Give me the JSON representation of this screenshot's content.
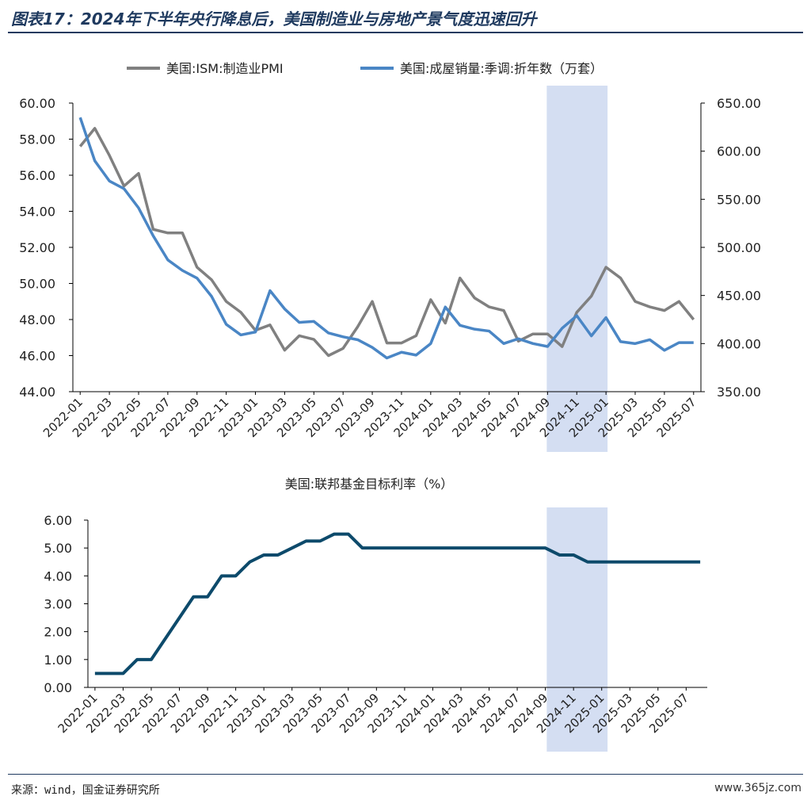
{
  "figure_title": "图表17：2024年下半年央行降息后，美国制造业与房地产景气度迅速回升",
  "source": "来源：wind，国金证券研究所",
  "watermark": "www.365jz.com",
  "highlight_range": [
    "2024-09",
    "2025-01"
  ],
  "colors": {
    "pmi": "#808080",
    "home_sales": "#4a86c5",
    "fed_rate": "#0d4a6b",
    "highlight": "#cdd8f0",
    "title": "#1f3a5f"
  },
  "chart_data": [
    {
      "type": "line",
      "legend_position": "top",
      "x": [
        "2022-01",
        "2022-02",
        "2022-03",
        "2022-04",
        "2022-05",
        "2022-06",
        "2022-07",
        "2022-08",
        "2022-09",
        "2022-10",
        "2022-11",
        "2022-12",
        "2023-01",
        "2023-02",
        "2023-03",
        "2023-04",
        "2023-05",
        "2023-06",
        "2023-07",
        "2023-08",
        "2023-09",
        "2023-10",
        "2023-11",
        "2023-12",
        "2024-01",
        "2024-02",
        "2024-03",
        "2024-04",
        "2024-05",
        "2024-06",
        "2024-07",
        "2024-08",
        "2024-09",
        "2024-10",
        "2024-11",
        "2024-12",
        "2025-01",
        "2025-02",
        "2025-03",
        "2025-04",
        "2025-05",
        "2025-06",
        "2025-07"
      ],
      "x_tick_labels": [
        "2022-01",
        "2022-03",
        "2022-05",
        "2022-07",
        "2022-09",
        "2022-11",
        "2023-01",
        "2023-03",
        "2023-05",
        "2023-07",
        "2023-09",
        "2023-11",
        "2024-01",
        "2024-03",
        "2024-05",
        "2024-07",
        "2024-09",
        "2024-11",
        "2025-01",
        "2025-03",
        "2025-05",
        "2025-07"
      ],
      "y_left": {
        "ylim": [
          44,
          60
        ],
        "ticks": [
          "44.00",
          "46.00",
          "48.00",
          "50.00",
          "52.00",
          "54.00",
          "56.00",
          "58.00",
          "60.00"
        ]
      },
      "y_right": {
        "ylim": [
          350,
          650
        ],
        "ticks": [
          "350.00",
          "400.00",
          "450.00",
          "500.00",
          "550.00",
          "600.00",
          "650.00"
        ]
      },
      "series": [
        {
          "name": "美国:ISM:制造业PMI",
          "axis": "left",
          "values": [
            57.6,
            58.6,
            57.1,
            55.4,
            56.1,
            53.0,
            52.8,
            52.8,
            50.9,
            50.2,
            49.0,
            48.4,
            47.4,
            47.7,
            46.3,
            47.1,
            46.9,
            46.0,
            46.4,
            47.6,
            49.0,
            46.7,
            46.7,
            47.1,
            49.1,
            47.8,
            50.3,
            49.2,
            48.7,
            48.5,
            46.8,
            47.2,
            47.2,
            46.5,
            48.4,
            49.3,
            50.9,
            50.3,
            49.0,
            48.7,
            48.5,
            49.0,
            48.0
          ]
        },
        {
          "name": "美国:成屋销量:季调:折年数（万套）",
          "axis": "right",
          "values": [
            635,
            590,
            569,
            561,
            541,
            512,
            487,
            476,
            468,
            449,
            420,
            409,
            412,
            455,
            436,
            422,
            423,
            411,
            407,
            404,
            396,
            385,
            391,
            388,
            400,
            438,
            419,
            415,
            413,
            400,
            405,
            400,
            397,
            416,
            429,
            408,
            427,
            402,
            400,
            404,
            393,
            401,
            401
          ]
        }
      ]
    },
    {
      "type": "line",
      "title": "美国:联邦基金目标利率（%）",
      "x": [
        "2022-01",
        "2022-02",
        "2022-03",
        "2022-04",
        "2022-05",
        "2022-06",
        "2022-07",
        "2022-08",
        "2022-09",
        "2022-10",
        "2022-11",
        "2022-12",
        "2023-01",
        "2023-02",
        "2023-03",
        "2023-04",
        "2023-05",
        "2023-06",
        "2023-07",
        "2023-08",
        "2023-09",
        "2023-10",
        "2023-11",
        "2023-12",
        "2024-01",
        "2024-02",
        "2024-03",
        "2024-04",
        "2024-05",
        "2024-06",
        "2024-07",
        "2024-08",
        "2024-09",
        "2024-10",
        "2024-11",
        "2024-12",
        "2025-01",
        "2025-02",
        "2025-03",
        "2025-04",
        "2025-05",
        "2025-06",
        "2025-07",
        "2025-08"
      ],
      "x_tick_labels": [
        "2022-01",
        "2022-03",
        "2022-05",
        "2022-07",
        "2022-09",
        "2022-11",
        "2023-01",
        "2023-03",
        "2023-05",
        "2023-07",
        "2023-09",
        "2023-11",
        "2024-01",
        "2024-03",
        "2024-05",
        "2024-07",
        "2024-09",
        "2024-11",
        "2025-01",
        "2025-03",
        "2025-05",
        "2025-07"
      ],
      "ylim": [
        0,
        6
      ],
      "y_ticks": [
        "0.00",
        "1.00",
        "2.00",
        "3.00",
        "4.00",
        "5.00",
        "6.00"
      ],
      "series": [
        {
          "name": "美国:联邦基金目标利率（%）",
          "values": [
            0.5,
            0.5,
            0.5,
            1.0,
            1.0,
            1.75,
            2.5,
            3.25,
            3.25,
            4.0,
            4.0,
            4.5,
            4.75,
            4.75,
            5.0,
            5.25,
            5.25,
            5.5,
            5.5,
            5.0,
            5.0,
            5.0,
            5.0,
            5.0,
            5.0,
            5.0,
            5.0,
            5.0,
            5.0,
            5.0,
            5.0,
            5.0,
            5.0,
            4.75,
            4.75,
            4.5,
            4.5,
            4.5,
            4.5,
            4.5,
            4.5,
            4.5,
            4.5,
            4.5
          ]
        }
      ]
    }
  ]
}
